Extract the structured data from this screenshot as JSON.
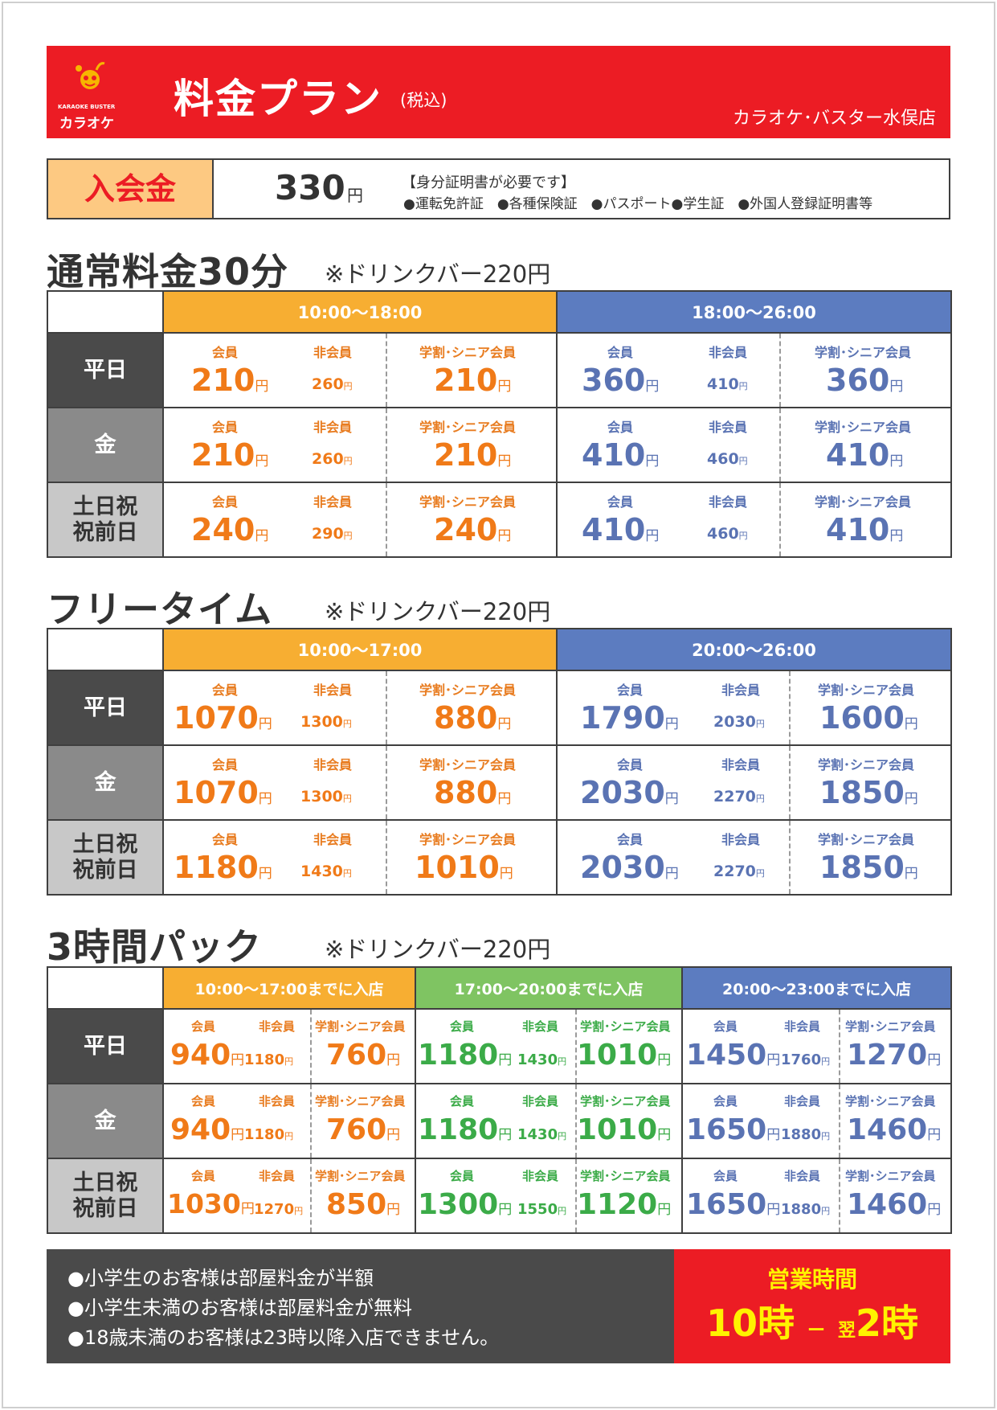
{
  "header": {
    "logo_en": "KARAOKE BUSTER",
    "logo_jp": "カラオケ",
    "title": "料金プラン",
    "title_tax": "(税込)",
    "shop": "カラオケ･バスター水俣店"
  },
  "membership": {
    "label": "入会金",
    "amount": "330",
    "yen": "円",
    "note_title": "【身分証明書が必要です】",
    "docs": "●運転免許証　●各種保険証　●パスポート●学生証　●外国人登録証明書等"
  },
  "labels": {
    "member": "会員",
    "non_member": "非会員",
    "student_senior": "学割･シニア会員",
    "yen": "円",
    "weekday": "平日",
    "friday": "金",
    "weekend_l1": "土日祝",
    "weekend_l2": "祝前日"
  },
  "regular": {
    "title": "通常料金30分",
    "note": "※ドリンクバー220円",
    "col1": "10:00〜18:00",
    "col2": "18:00〜26:00",
    "weekday": {
      "a_member": "210",
      "a_non": "260",
      "a_ss": "210",
      "b_member": "360",
      "b_non": "410",
      "b_ss": "360"
    },
    "friday": {
      "a_member": "210",
      "a_non": "260",
      "a_ss": "210",
      "b_member": "410",
      "b_non": "460",
      "b_ss": "410"
    },
    "weekend": {
      "a_member": "240",
      "a_non": "290",
      "a_ss": "240",
      "b_member": "410",
      "b_non": "460",
      "b_ss": "410"
    }
  },
  "freetime": {
    "title": "フリータイム",
    "note": "※ドリンクバー220円",
    "col1": "10:00〜17:00",
    "col2": "20:00〜26:00",
    "weekday": {
      "a_member": "1070",
      "a_non": "1300",
      "a_ss": "880",
      "b_member": "1790",
      "b_non": "2030",
      "b_ss": "1600"
    },
    "friday": {
      "a_member": "1070",
      "a_non": "1300",
      "a_ss": "880",
      "b_member": "2030",
      "b_non": "2270",
      "b_ss": "1850"
    },
    "weekend": {
      "a_member": "1180",
      "a_non": "1430",
      "a_ss": "1010",
      "b_member": "2030",
      "b_non": "2270",
      "b_ss": "1850"
    }
  },
  "pack3": {
    "title": "3時間パック",
    "note": "※ドリンクバー220円",
    "col1": "10:00〜17:00までに入店",
    "col2": "17:00〜20:00までに入店",
    "col3": "20:00〜23:00までに入店",
    "weekday": {
      "a_member": "940",
      "a_non": "1180",
      "a_ss": "760",
      "b_member": "1180",
      "b_non": "1430",
      "b_ss": "1010",
      "c_member": "1450",
      "c_non": "1760",
      "c_ss": "1270"
    },
    "friday": {
      "a_member": "940",
      "a_non": "1180",
      "a_ss": "760",
      "b_member": "1180",
      "b_non": "1430",
      "b_ss": "1010",
      "c_member": "1650",
      "c_non": "1880",
      "c_ss": "1460"
    },
    "weekend": {
      "a_member": "1030",
      "a_non": "1270",
      "a_ss": "850",
      "b_member": "1300",
      "b_non": "1550",
      "b_ss": "1120",
      "c_member": "1650",
      "c_non": "1880",
      "c_ss": "1460"
    }
  },
  "footer": {
    "notes": [
      "●小学生のお客様は部屋料金が半額",
      "●小学生未満のお客様は部屋料金が無料",
      "●18歳未満のお客様は23時以降入店できません。"
    ],
    "hours_title": "営業時間",
    "hours_open": "10時",
    "hours_dash": "ー",
    "hours_next": "翌",
    "hours_close": "2時"
  },
  "colors": {
    "brand_red": "#ec1c24",
    "daytime_orange": "#f7ae32",
    "night_blue": "#5c7cc0",
    "evening_green": "#7fc462"
  }
}
